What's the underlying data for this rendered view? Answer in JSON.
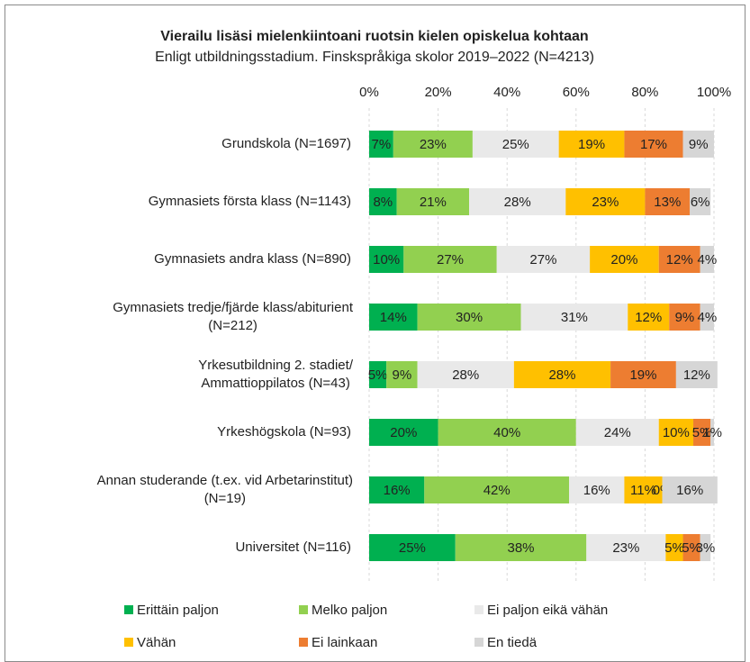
{
  "chart_data": {
    "type": "stacked_bar_horizontal",
    "title": "Vierailu lisäsi mielenkiintoani ruotsin kielen opiskelua kohtaan",
    "subtitle": "Enligt utbildningsstadium. Finskspråkiga skolor 2019–2022 (N=4213)",
    "categories": [
      "Grundskola (N=1697)",
      "Gymnasiets första klass (N=1143)",
      "Gymnasiets andra klass (N=890)",
      "Gymnasiets tredje/fjärde klass/abiturient\n(N=212)",
      "Yrkesutbildning 2. stadiet/\nAmmattioppilatos (N=43)",
      "Yrkeshögskola (N=93)",
      "Annan studerande (t.ex. vid Arbetarinstitut)\n(N=19)",
      "Universitet (N=116)"
    ],
    "series": [
      {
        "name": "Erittäin paljon",
        "color": "#00b050",
        "values": [
          7,
          8,
          10,
          14,
          5,
          20,
          16,
          25
        ],
        "value_labels": [
          "7%",
          "8%",
          "10%",
          "14%",
          "5%",
          "20%",
          "16%",
          "25%"
        ]
      },
      {
        "name": "Melko paljon",
        "color": "#92d050",
        "values": [
          23,
          21,
          27,
          30,
          9,
          40,
          42,
          38
        ],
        "value_labels": [
          "23%",
          "21%",
          "27%",
          "30%",
          "9%",
          "40%",
          "42%",
          "38%"
        ]
      },
      {
        "name": "Ei paljon eikä vähän",
        "color": "#e9e9e9",
        "values": [
          25,
          28,
          27,
          31,
          28,
          24,
          16,
          23
        ],
        "value_labels": [
          "25%",
          "28%",
          "27%",
          "31%",
          "28%",
          "24%",
          "16%",
          "23%"
        ]
      },
      {
        "name": "Vähän",
        "color": "#ffc000",
        "values": [
          19,
          23,
          20,
          12,
          28,
          10,
          11,
          5
        ],
        "value_labels": [
          "19%",
          "23%",
          "20%",
          "12%",
          "28%",
          "10%",
          "11%",
          "5%"
        ]
      },
      {
        "name": "Ei lainkaan",
        "color": "#ed7d31",
        "values": [
          17,
          13,
          12,
          9,
          19,
          5,
          0,
          5
        ],
        "value_labels": [
          "17%",
          "13%",
          "12%",
          "9%",
          "19%",
          "5%",
          "0%",
          "5%"
        ]
      },
      {
        "name": "En tiedä",
        "color": "#d6d6d6",
        "values": [
          9,
          6,
          4,
          4,
          12,
          1,
          16,
          3
        ],
        "value_labels": [
          "9%",
          "6%",
          "4%",
          "4%",
          "12%",
          "1%",
          "16%",
          "3%"
        ]
      }
    ],
    "xlim": [
      0,
      100
    ],
    "xticks": [
      {
        "value": 0,
        "label": "0%"
      },
      {
        "value": 20,
        "label": "20%"
      },
      {
        "value": 40,
        "label": "40%"
      },
      {
        "value": 60,
        "label": "60%"
      },
      {
        "value": 80,
        "label": "80%"
      },
      {
        "value": 100,
        "label": "100%"
      }
    ],
    "grid": true,
    "legend": "bottom"
  }
}
